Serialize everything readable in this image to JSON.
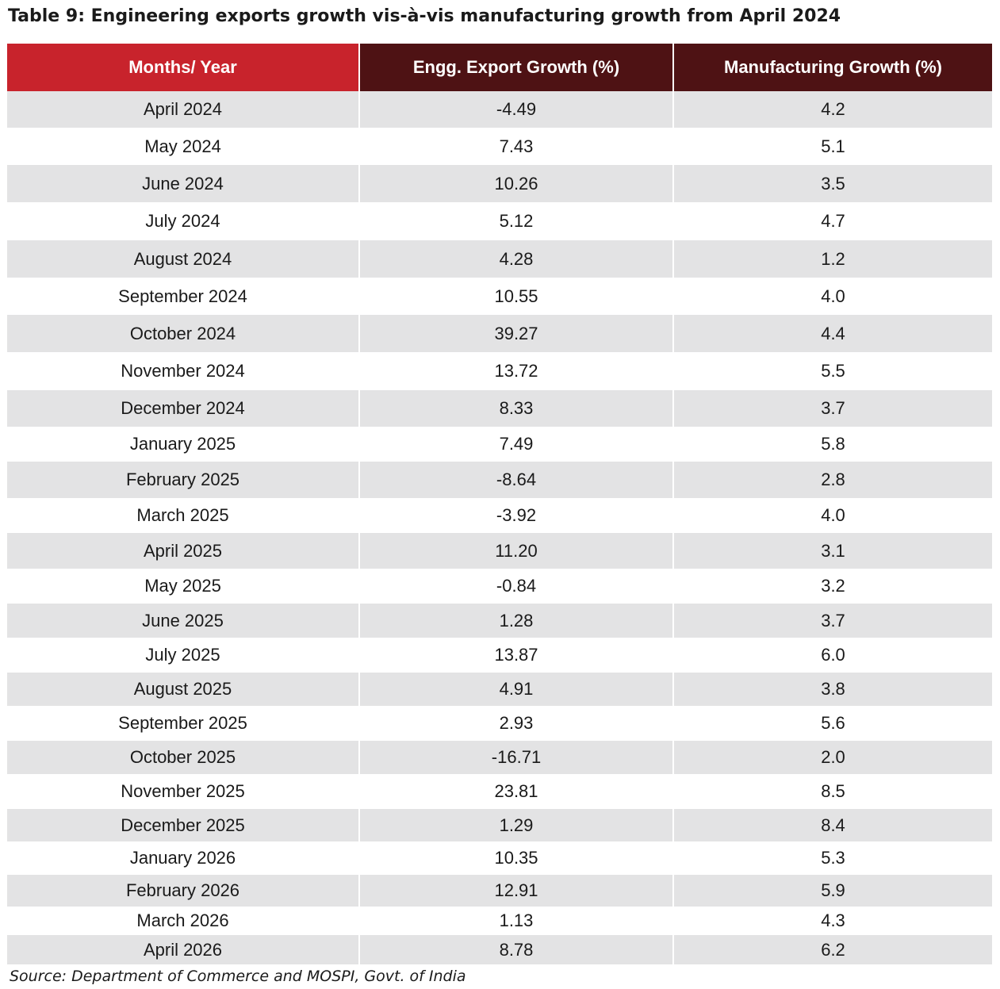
{
  "title": "Table 9: Engineering exports growth vis-à-vis manufacturing growth from April 2024",
  "table": {
    "headers": [
      "Months/ Year",
      "Engg. Export Growth (%)",
      "Manufacturing Growth (%)"
    ],
    "header_colors": [
      "#c8232c",
      "#4e1214",
      "#4e1214"
    ],
    "rows": [
      [
        "April 2024",
        "-4.49",
        "4.2"
      ],
      [
        "May 2024",
        "7.43",
        "5.1"
      ],
      [
        "June 2024",
        "10.26",
        "3.5"
      ],
      [
        "July 2024",
        "5.12",
        "4.7"
      ],
      [
        "August 2024",
        "4.28",
        "1.2"
      ],
      [
        "September 2024",
        "10.55",
        "4.0"
      ],
      [
        "October 2024",
        "39.27",
        "4.4"
      ],
      [
        "November 2024",
        "13.72",
        "5.5"
      ],
      [
        "December 2024",
        "8.33",
        "3.7"
      ],
      [
        "January 2025",
        "7.49",
        "5.8"
      ],
      [
        "February 2025",
        "-8.64",
        "2.8"
      ],
      [
        "March 2025",
        "-3.92",
        "4.0"
      ],
      [
        "April 2025",
        "11.20",
        "3.1"
      ],
      [
        "May 2025",
        "-0.84",
        "3.2"
      ],
      [
        "June 2025",
        "1.28",
        "3.7"
      ],
      [
        "July 2025",
        "13.87",
        "6.0"
      ],
      [
        "August 2025",
        "4.91",
        "3.8"
      ],
      [
        "September 2025",
        "2.93",
        "5.6"
      ],
      [
        "October 2025",
        "-16.71",
        "2.0"
      ],
      [
        "November 2025",
        "23.81",
        "8.5"
      ],
      [
        "December 2025",
        "1.29",
        "8.4"
      ],
      [
        "January 2026",
        "10.35",
        "5.3"
      ],
      [
        "February 2026",
        "12.91",
        "5.9"
      ],
      [
        "March 2026",
        "1.13",
        "4.3"
      ],
      [
        "April 2026",
        "8.78",
        "6.2"
      ]
    ]
  },
  "source": "Source: Department of Commerce and MOSPI, Govt. of India"
}
